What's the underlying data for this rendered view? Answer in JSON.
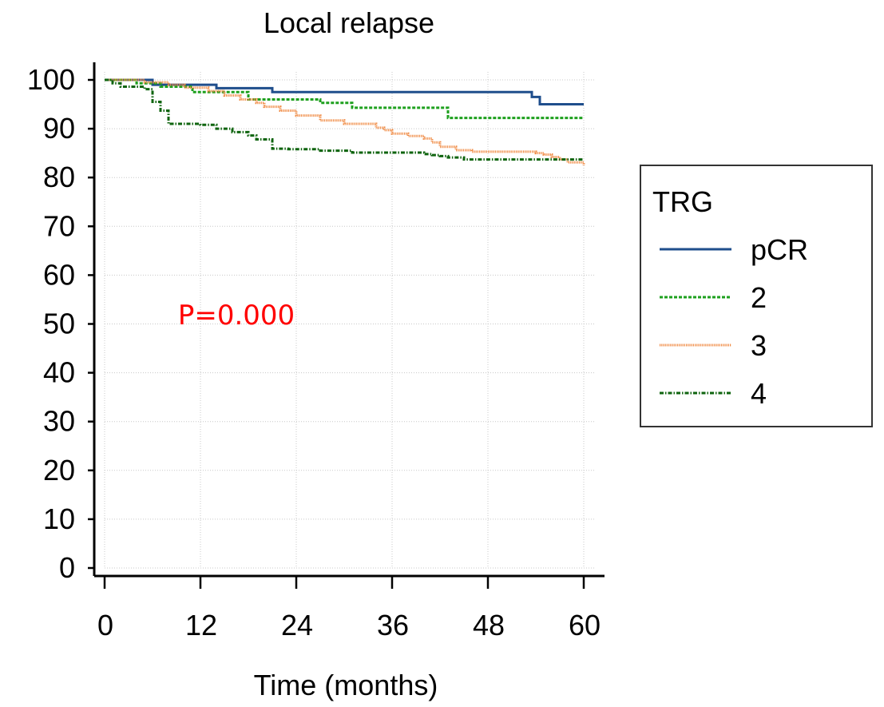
{
  "chart_data": {
    "type": "line",
    "step": true,
    "title": "Local relapse",
    "xlabel": "Time (months)",
    "ylabel": "",
    "xlim": [
      0,
      60
    ],
    "ylim": [
      0,
      100
    ],
    "x_ticks": [
      0,
      12,
      24,
      36,
      48,
      60
    ],
    "y_ticks": [
      0,
      10,
      20,
      30,
      40,
      50,
      60,
      70,
      80,
      90,
      100
    ],
    "grid": true,
    "annotation": {
      "text": "P=0.000",
      "color": "#ff0000"
    },
    "legend": {
      "title": "TRG",
      "position": "right"
    },
    "series": [
      {
        "name": "pCR",
        "color": "#1f4e8c",
        "dash": "solid",
        "x": [
          0,
          5.5,
          6,
          14,
          21,
          53.5,
          54.5,
          60
        ],
        "y": [
          100,
          100,
          99,
          98.3,
          97.5,
          96.5,
          95,
          95
        ]
      },
      {
        "name": "2",
        "color": "#1ea01e",
        "dash": "dashed",
        "x": [
          0,
          4,
          7,
          11,
          18,
          27,
          31,
          43,
          60
        ],
        "y": [
          100,
          99.3,
          98.6,
          97.5,
          96,
          95.3,
          94.3,
          92.2,
          92.2
        ]
      },
      {
        "name": "3",
        "color": "#f08c46",
        "dash": "dotted",
        "x": [
          0,
          5,
          8,
          10,
          13,
          15,
          17,
          19,
          20,
          22,
          24,
          27,
          30,
          34,
          35,
          36,
          38,
          40,
          41,
          42,
          44,
          46,
          54,
          55,
          56,
          57,
          58,
          60
        ],
        "y": [
          100,
          99.5,
          99,
          98.4,
          97.7,
          96.8,
          96,
          95.3,
          94.5,
          93.7,
          92.7,
          91.7,
          91,
          90.2,
          89.7,
          89,
          88.5,
          88,
          87.2,
          86.3,
          85.6,
          85.3,
          85,
          84.7,
          84.2,
          83.7,
          83.1,
          82.5
        ]
      },
      {
        "name": "4",
        "color": "#0f640f",
        "dash": "dashdot",
        "x": [
          0,
          1,
          2,
          5,
          6,
          7,
          8,
          12,
          14,
          16,
          18,
          19,
          21,
          23,
          27,
          31,
          40,
          41,
          42,
          43,
          45,
          50,
          60
        ],
        "y": [
          100,
          99.3,
          98.6,
          98.1,
          95.5,
          93.7,
          91,
          90.8,
          90,
          89.3,
          88.6,
          87.8,
          85.9,
          85.8,
          85.5,
          85.1,
          84.8,
          84.6,
          84.4,
          84.1,
          83.7,
          83.7,
          83.7
        ]
      }
    ]
  }
}
